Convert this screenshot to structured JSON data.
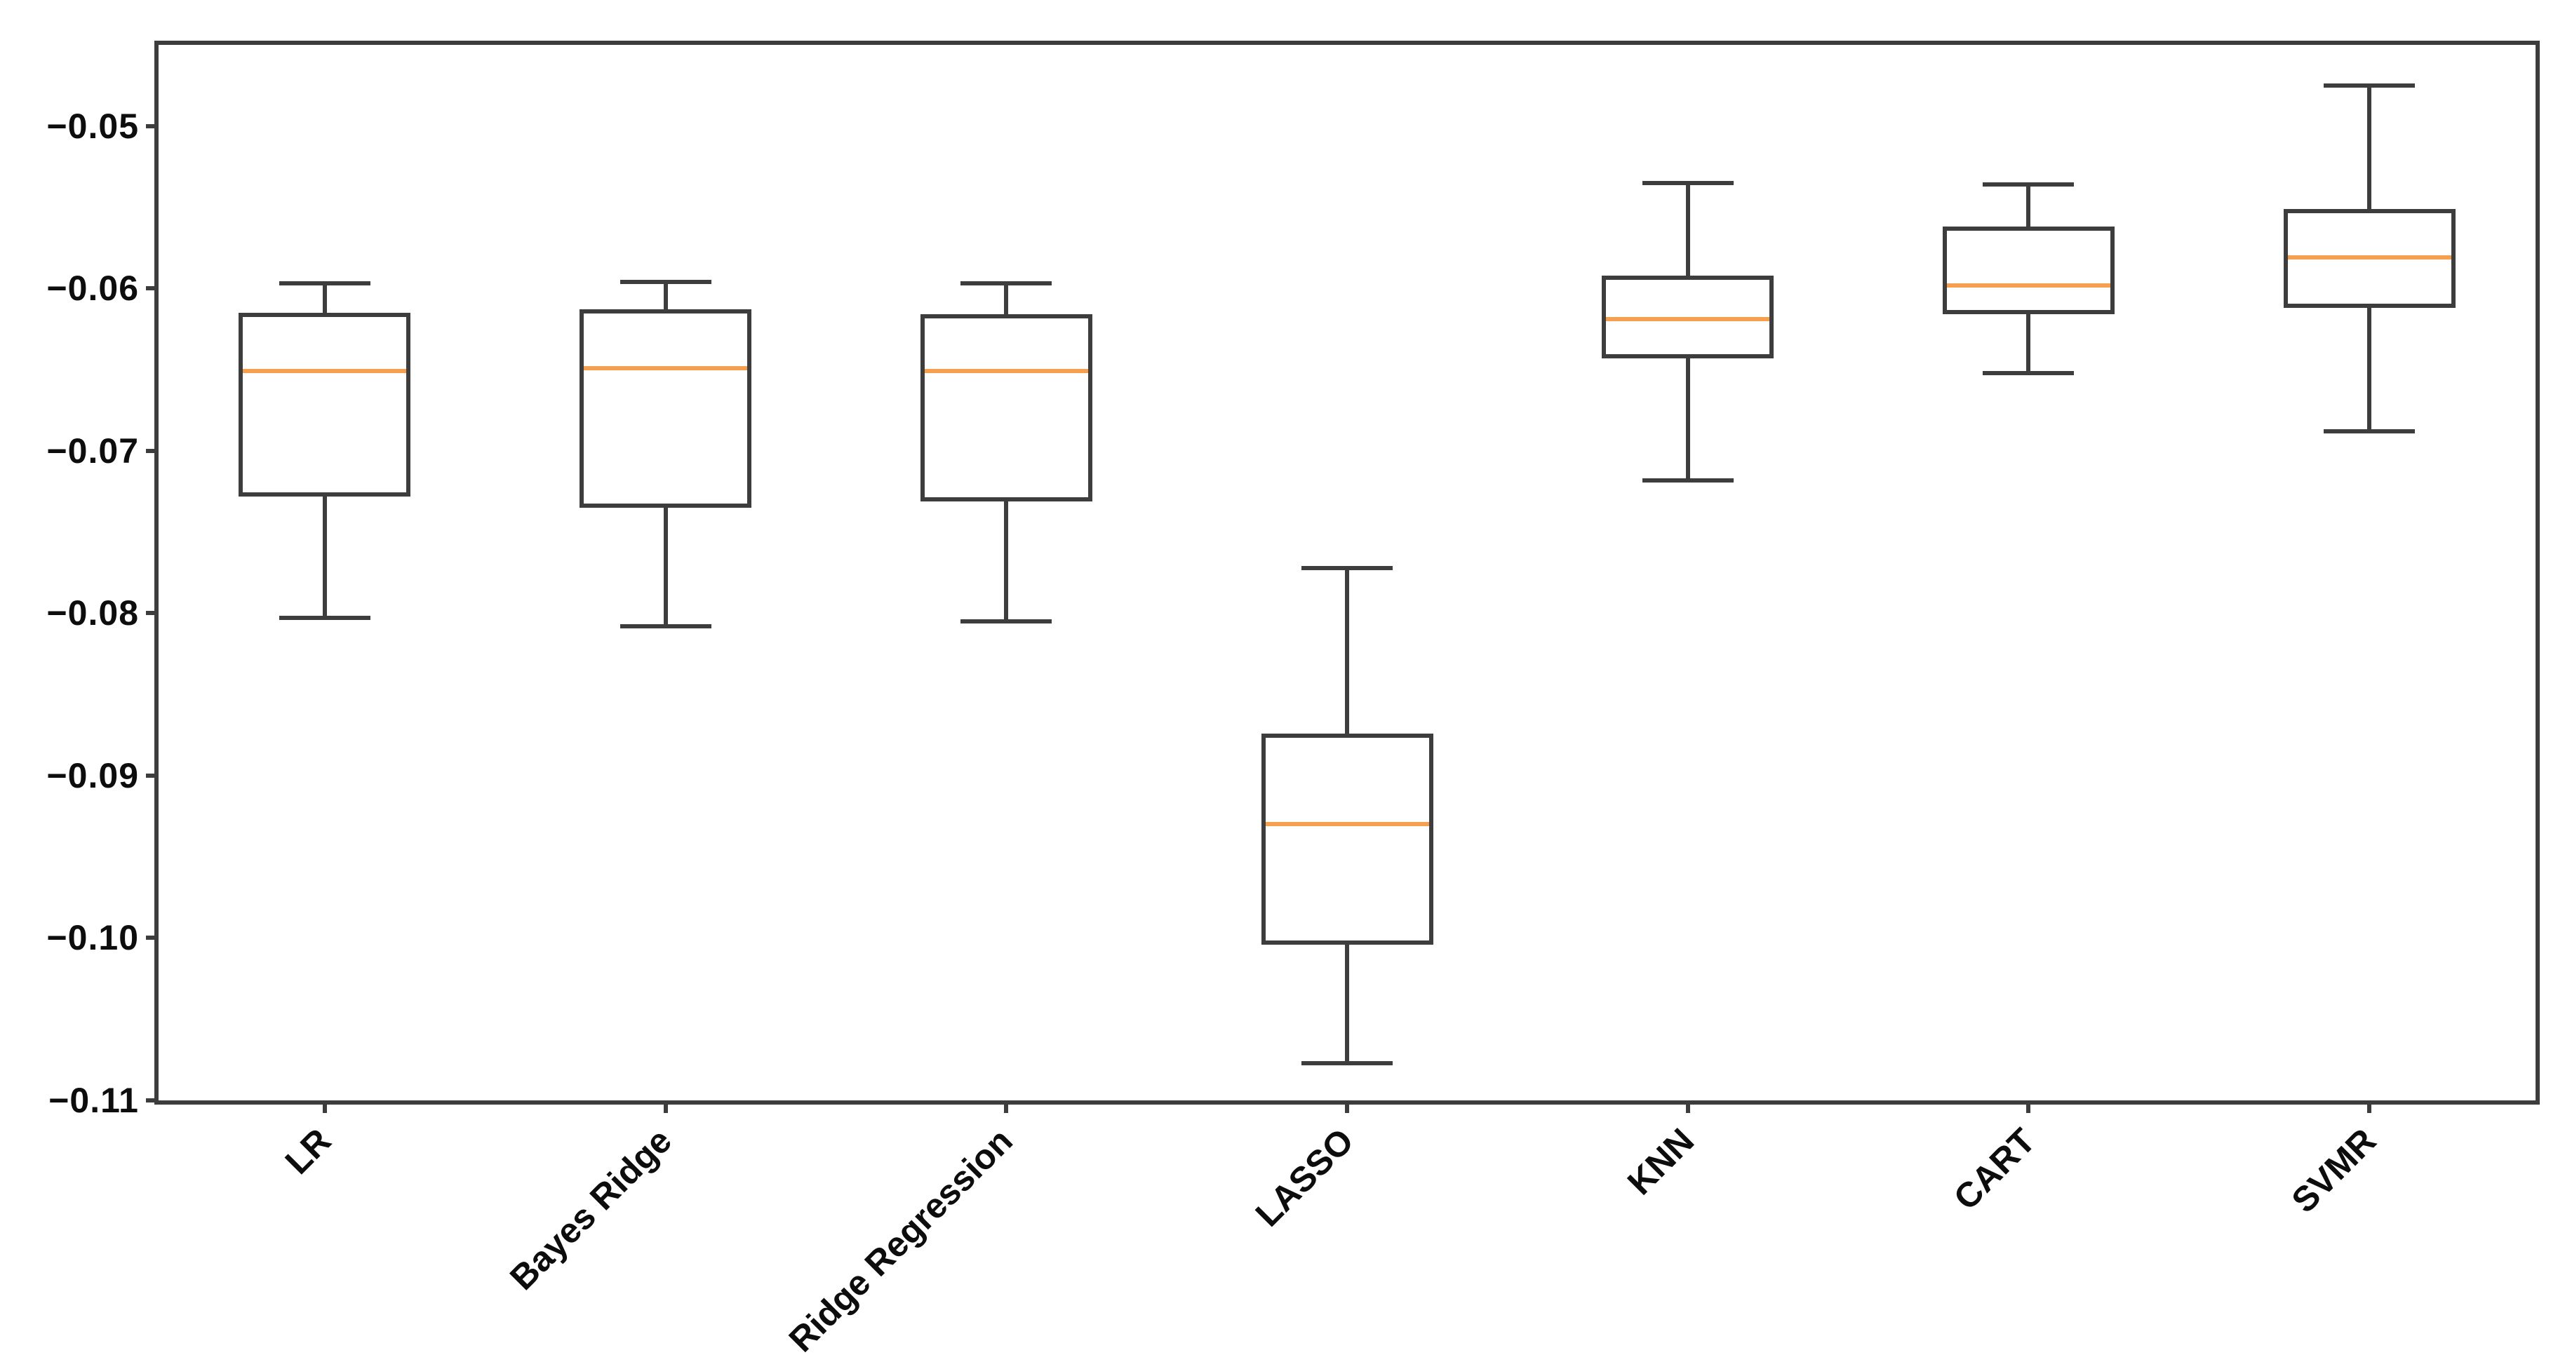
{
  "chart_data": {
    "type": "boxplot",
    "title": "",
    "xlabel": "",
    "ylabel": "",
    "grid": false,
    "legend": null,
    "categories": [
      "LR",
      "Bayes Ridge",
      "Ridge Regression",
      "LASSO",
      "KNN",
      "CART",
      "SVMR"
    ],
    "boxes": [
      {
        "label": "LR",
        "whislo": -0.0803,
        "q1": -0.0728,
        "med": -0.0651,
        "q3": -0.0615,
        "whishi": -0.0597
      },
      {
        "label": "Bayes Ridge",
        "whislo": -0.0808,
        "q1": -0.0735,
        "med": -0.0649,
        "q3": -0.0613,
        "whishi": -0.0596
      },
      {
        "label": "Ridge Regression",
        "whislo": -0.0805,
        "q1": -0.0731,
        "med": -0.0651,
        "q3": -0.0616,
        "whishi": -0.0597
      },
      {
        "label": "LASSO",
        "whislo": -0.1077,
        "q1": -0.1004,
        "med": -0.093,
        "q3": -0.0874,
        "whishi": -0.0772
      },
      {
        "label": "KNN",
        "whislo": -0.0718,
        "q1": -0.0643,
        "med": -0.0619,
        "q3": -0.0592,
        "whishi": -0.0535
      },
      {
        "label": "CART",
        "whislo": -0.0652,
        "q1": -0.0616,
        "med": -0.0598,
        "q3": -0.0562,
        "whishi": -0.0536
      },
      {
        "label": "SVMR",
        "whislo": -0.0688,
        "q1": -0.0612,
        "med": -0.0581,
        "q3": -0.0551,
        "whishi": -0.0475
      }
    ],
    "ylim": [
      -0.11,
      -0.045
    ],
    "yticks": [
      {
        "value": -0.05,
        "label": "−0.05"
      },
      {
        "value": -0.06,
        "label": "−0.06"
      },
      {
        "value": -0.07,
        "label": "−0.07"
      },
      {
        "value": -0.08,
        "label": "−0.08"
      },
      {
        "value": -0.09,
        "label": "−0.09"
      },
      {
        "value": -0.1,
        "label": "−0.10"
      },
      {
        "value": -0.11,
        "label": "−0.11"
      }
    ],
    "colors": {
      "median": "#f6a04f",
      "line": "#3d3d3d",
      "label": "#0d0d0d",
      "background": "#ffffff"
    }
  }
}
